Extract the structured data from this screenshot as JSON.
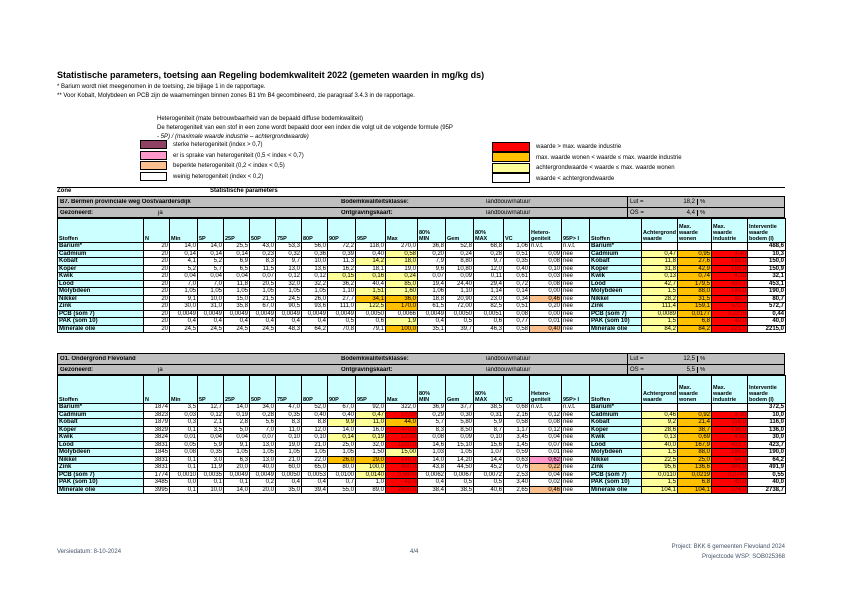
{
  "title": "Statistische parameters, toetsing aan Regeling bodemkwaliteit 2022 (gemeten waarden in mg/kg ds)",
  "footnote1": "* Barium wordt niet meegenomen in de toetsing, zie bijlage 1 in de rapportage.",
  "footnote2": "** Voor Kobalt, Molybdeen en PCB zijn de waarnemingen binnen zones B1 t/m B4 gecombineerd, zie paragraaf 3.4.3 in de rapportage.",
  "hetero_note": {
    "line1": "Heterogeniteit (mate betrouwbaarheid van de bepaald diffuse bodemkwaliteit)",
    "line2": "De heterogeniteit van een stof in een zone wordt bepaald door een index die volgt uit de volgende formule (95P",
    "line3": "- 5P) / (maximale waarde industrie – achtergrondwaarde)",
    "items": [
      {
        "color": "#8E4163",
        "label": "sterke heterogeniteit (index > 0,7)"
      },
      {
        "color": "#FF99CC",
        "label": "er is sprake van heterogeniteit (0,5 < index < 0,7)"
      },
      {
        "color": "#FAC090",
        "label": "beperkte heterogeniteit (0,2 < index < 0,5)"
      },
      {
        "color": "#FFFFFF",
        "label": "weinig heterogeniteit (index < 0,2)"
      }
    ]
  },
  "value_legend": {
    "items": [
      {
        "color": "#FF0000",
        "label": "waarde > max. waarde industrie"
      },
      {
        "color": "#FFC000",
        "label": "max. waarde wonen < waarde ≤ max. waarde industrie"
      },
      {
        "color": "#FFFF99",
        "label": "achtergrondwaarde < waarde ≤ max. waarde wonen"
      },
      {
        "color": "#FFFFFF",
        "label": "waarde < achtergrondwaarde"
      }
    ]
  },
  "zone_label": "Zone",
  "stat_label": "Statistische parameters",
  "columns": [
    "Stoffen",
    "N",
    "Min",
    "5P",
    "25P",
    "50P",
    "75P",
    "80P",
    "90P",
    "95P",
    "Max",
    "80%\nMIN",
    "Gem",
    "80%\nMAX",
    "VC",
    "Hetero-\ngeniteit",
    "95P> I",
    "Stoffen",
    "Achtergrond\nwaarde",
    "Max.\nwaarde\nwonen",
    "Max.\nwaarde\nindustrie",
    "Interventie\nwaarde\nbodem (I)"
  ],
  "cell_colors": {
    "ly": "#FFFF99",
    "am": "#FFC000",
    "rd": "#FF0000",
    "pe": "#FAC090",
    "pk": "#FF99CC"
  },
  "tables": [
    {
      "header": {
        "zone_title": "B7. Bermen provinciale weg Oostvaardersdijk",
        "gezoneerd_label": "Gezoneerd:",
        "gezoneerd_value": "ja",
        "klasse_label": "Bodemkwaliteitsklasse:",
        "klasse_value": "landbouw/natuur",
        "ontgraving_label": "Ontgravingskaart:",
        "ontgraving_value": "landbouw/natuur",
        "lut_label": "Lut =",
        "lut_value": "18,2",
        "lut_unit": "%",
        "os_label": "OS =",
        "os_value": "4,4",
        "os_unit": "%"
      },
      "rows": [
        [
          "Barium*",
          "20",
          "14,0",
          "14,0",
          "25,5",
          "43,0",
          "53,3",
          "56,0",
          "72,2",
          "118,0",
          "270,0",
          "36,8",
          "52,8",
          "68,8",
          "1,06",
          "n.v.t.",
          "n.v.t.",
          "Barium*",
          "",
          "",
          "",
          "488,6"
        ],
        [
          "Cadmium",
          "20",
          "0,14",
          "0,14",
          "0,14",
          "0,23",
          "0,32",
          "0,36",
          "0,39",
          "0,40",
          [
            "0,58",
            "ly"
          ],
          "0,20",
          "0,24",
          "0,28",
          "0,51",
          "0,09",
          "nee",
          "Cadmium",
          [
            "0,47",
            "ly"
          ],
          [
            "0,95",
            "am"
          ],
          [
            "3,40",
            "rd"
          ],
          "10,3"
        ],
        [
          "Kobalt",
          "20",
          "4,1",
          "5,2",
          "6,9",
          "8,3",
          "9,7",
          "10,0",
          "11,3",
          [
            "14,2",
            "ly"
          ],
          [
            "18,0",
            "ly"
          ],
          "7,9",
          "8,80",
          "9,7",
          "0,35",
          "0,08",
          "nee",
          "Kobalt",
          [
            "11,8",
            "ly"
          ],
          [
            "27,6",
            "am"
          ],
          [
            "150,0",
            "rd"
          ],
          "150,0"
        ],
        [
          "Koper",
          "20",
          "5,2",
          "5,7",
          "6,5",
          "11,5",
          "13,0",
          "13,6",
          "16,2",
          "18,1",
          "19,0",
          "9,6",
          "10,80",
          "12,0",
          "0,40",
          "0,10",
          "nee",
          "Koper",
          [
            "31,8",
            "ly"
          ],
          [
            "42,9",
            "am"
          ],
          [
            "150,9",
            "rd"
          ],
          "150,9"
        ],
        [
          "Kwik",
          "20",
          "0,04",
          "0,04",
          "0,04",
          "0,07",
          "0,12",
          "0,12",
          [
            "0,15",
            "ly"
          ],
          [
            "0,16",
            "ly"
          ],
          [
            "0,24",
            "ly"
          ],
          "0,07",
          "0,09",
          "0,11",
          "0,61",
          "0,03",
          "nee",
          "Kwik",
          [
            "0,13",
            "ly"
          ],
          [
            "0,74",
            "am"
          ],
          [
            "4,28",
            "rd"
          ],
          "32,1"
        ],
        [
          "Lood",
          "20",
          "7,0",
          "7,0",
          "11,8",
          "20,5",
          "32,0",
          "32,2",
          "36,2",
          "40,4",
          [
            "85,0",
            "ly"
          ],
          "19,4",
          "24,40",
          "29,4",
          "0,72",
          "0,08",
          "nee",
          "Lood",
          [
            "42,7",
            "ly"
          ],
          [
            "179,5",
            "am"
          ],
          [
            "453,1",
            "rd"
          ],
          "453,1"
        ],
        [
          "Molybdeen",
          "20",
          "1,05",
          "1,05",
          "1,05",
          "1,05",
          "1,05",
          "1,05",
          "1,10",
          [
            "1,51",
            "ly"
          ],
          [
            "1,60",
            "ly"
          ],
          "1,06",
          "1,10",
          "1,14",
          "0,14",
          "0,00",
          "nee",
          "Molybdeen",
          [
            "1,5",
            "ly"
          ],
          [
            "88,0",
            "am"
          ],
          [
            "190,0",
            "rd"
          ],
          "190,0"
        ],
        [
          "Nikkel",
          "20",
          "9,1",
          "10,0",
          "15,0",
          "21,5",
          "24,5",
          "26,0",
          "27,7",
          [
            "34,1",
            "am"
          ],
          [
            "36,0",
            "am"
          ],
          "18,8",
          "20,90",
          "23,0",
          "0,34",
          [
            "0,46",
            "pe"
          ],
          "nee",
          "Nikkel",
          [
            "28,2",
            "ly"
          ],
          [
            "31,5",
            "am"
          ],
          [
            "80,7",
            "rd"
          ],
          "80,7"
        ],
        [
          "Zink",
          "20",
          "30,0",
          "31,0",
          "35,8",
          "67,0",
          "90,5",
          "93,6",
          "111,0",
          [
            "122,5",
            "ly"
          ],
          [
            "170,0",
            "am"
          ],
          "61,5",
          "72,00",
          "82,5",
          "0,51",
          "0,20",
          "nee",
          "Zink",
          [
            "111,4",
            "ly"
          ],
          [
            "159,1",
            "am"
          ],
          [
            "572,7",
            "rd"
          ],
          "572,7"
        ],
        [
          "PCB (som 7)",
          "20",
          "0,0049",
          "0,0049",
          "0,0049",
          "0,0049",
          "0,0049",
          "0,0049",
          "0,0049",
          "0,0050",
          "0,0066",
          "0,0049",
          "0,0050",
          "0,0051",
          "0,08",
          "0,00",
          "nee",
          "PCB (som 7)",
          [
            "0,0089",
            "ly"
          ],
          [
            "0,0177",
            "am"
          ],
          [
            "0,2215",
            "rd"
          ],
          "0,44"
        ],
        [
          "PAK (som 10)",
          "20",
          "0,4",
          "0,4",
          "0,4",
          "0,4",
          "0,4",
          "0,4",
          "0,5",
          "0,6",
          [
            "1,9",
            "ly"
          ],
          "0,4",
          "0,5",
          "0,6",
          "0,77",
          "0,01",
          "nee",
          "PAK (som 10)",
          [
            "1,5",
            "ly"
          ],
          [
            "6,8",
            "am"
          ],
          [
            "40,0",
            "rd"
          ],
          "40,0"
        ],
        [
          "Minerale olie",
          "20",
          "24,5",
          "24,5",
          "24,5",
          "24,5",
          "48,3",
          "64,2",
          "70,8",
          "79,1",
          [
            "100,0",
            "am"
          ],
          "35,1",
          "39,7",
          "46,3",
          "0,58",
          [
            "0,40",
            "pe"
          ],
          "nee",
          "Minerale olie",
          [
            "84,2",
            "ly"
          ],
          [
            "84,2",
            "am"
          ],
          [
            "221,5",
            "rd"
          ],
          "2215,0"
        ]
      ]
    },
    {
      "header": {
        "zone_title": "O1. Ondergrond Flevoland",
        "gezoneerd_label": "Gezoneerd:",
        "gezoneerd_value": "ja",
        "klasse_label": "Bodemkwaliteitsklasse:",
        "klasse_value": "landbouw/natuur",
        "ontgraving_label": "Ontgravingskaart:",
        "ontgraving_value": "landbouw/natuur",
        "lut_label": "Lut =",
        "lut_value": "12,5",
        "lut_unit": "%",
        "os_label": "OS =",
        "os_value": "5,5",
        "os_unit": "%"
      },
      "rows": [
        [
          "Barium*",
          "1874",
          "3,5",
          "12,7",
          "14,0",
          "34,0",
          "47,0",
          "52,0",
          "67,0",
          "92,0",
          "322,0",
          "36,9",
          "37,7",
          "38,5",
          "0,68",
          "n.v.t.",
          "n.v.t.",
          "Barium*",
          "",
          "",
          "",
          "372,5"
        ],
        [
          "Cadmium",
          "3823",
          "0,03",
          "0,12",
          "0,19",
          "0,28",
          "0,35",
          "0,40",
          "0,40",
          [
            "0,47",
            "ly"
          ],
          [
            "17,00",
            "rd"
          ],
          "0,29",
          "0,30",
          "0,31",
          "2,16",
          "0,12",
          "nee",
          "Cadmium",
          [
            "0,46",
            "ly"
          ],
          [
            "0,92",
            "am"
          ],
          [
            "3,30",
            "rd"
          ],
          "10,0"
        ],
        [
          "Kobalt",
          "1879",
          "0,3",
          "2,1",
          "2,8",
          "5,6",
          "8,3",
          "8,8",
          [
            "9,9",
            "ly"
          ],
          [
            "11,0",
            "ly"
          ],
          [
            "44,0",
            "am"
          ],
          "5,7",
          "5,80",
          "5,9",
          "0,58",
          "0,08",
          "nee",
          "Kobalt",
          [
            "9,2",
            "ly"
          ],
          [
            "21,4",
            "am"
          ],
          [
            "116,0",
            "rd"
          ],
          "116,0"
        ],
        [
          "Koper",
          "3829",
          "0,1",
          "3,5",
          "5,0",
          "7,0",
          "11,0",
          "12,0",
          "14,0",
          "16,0",
          [
            "470,0",
            "rd"
          ],
          "8,3",
          "8,50",
          "8,7",
          "1,17",
          "0,12",
          "nee",
          "Koper",
          [
            "28,6",
            "ly"
          ],
          [
            "38,7",
            "am"
          ],
          [
            "136,0",
            "rd"
          ],
          "136,0"
        ],
        [
          "Kwik",
          "3824",
          "0,01",
          "0,04",
          "0,04",
          "0,07",
          "0,10",
          "0,10",
          [
            "0,14",
            "ly"
          ],
          [
            "0,19",
            "ly"
          ],
          [
            "12,00",
            "rd"
          ],
          "0,08",
          "0,09",
          "0,10",
          "3,45",
          "0,04",
          "nee",
          "Kwik",
          [
            "0,13",
            "ly"
          ],
          [
            "0,69",
            "am"
          ],
          [
            "4,00",
            "rd"
          ],
          "30,0"
        ],
        [
          "Lood",
          "3831",
          "0,05",
          "5,9",
          "9,1",
          "13,0",
          "19,0",
          "21,0",
          "25,0",
          "32,0",
          [
            "1220,0",
            "rd"
          ],
          "14,6",
          "15,10",
          "15,6",
          "1,45",
          "0,07",
          "nee",
          "Lood",
          [
            "40,0",
            "ly"
          ],
          [
            "167,9",
            "am"
          ],
          [
            "423,7",
            "rd"
          ],
          "423,7"
        ],
        [
          "Molybdeen",
          "1845",
          "0,08",
          "0,35",
          "1,05",
          "1,05",
          "1,05",
          "1,05",
          "1,05",
          "1,50",
          [
            "15,00",
            "ly"
          ],
          "1,03",
          "1,05",
          "1,07",
          "0,59",
          "0,01",
          "nee",
          "Molybdeen",
          [
            "1,5",
            "ly"
          ],
          [
            "88,0",
            "am"
          ],
          [
            "190,0",
            "rd"
          ],
          "190,0"
        ],
        [
          "Nikkel",
          "3831",
          "0,1",
          "3,0",
          "6,3",
          "13,0",
          "21,0",
          "22,0",
          [
            "26,0",
            "am"
          ],
          [
            "29,0",
            "am"
          ],
          [
            "140,0",
            "rd"
          ],
          "14,0",
          "14,20",
          "14,4",
          "0,63",
          [
            "0,62",
            "pk"
          ],
          "nee",
          "Nikkel",
          [
            "22,5",
            "ly"
          ],
          [
            "25,0",
            "am"
          ],
          [
            "64,2",
            "rd"
          ],
          "64,2"
        ],
        [
          "Zink",
          "3831",
          "0,1",
          "11,9",
          "20,0",
          "40,0",
          "60,0",
          "65,0",
          "80,0",
          [
            "100,0",
            "ly"
          ],
          [
            "450,0",
            "rd"
          ],
          "43,8",
          "44,50",
          "45,2",
          "0,76",
          [
            "0,22",
            "pe"
          ],
          "nee",
          "Zink",
          [
            "95,6",
            "ly"
          ],
          [
            "136,6",
            "am"
          ],
          [
            "491,9",
            "rd"
          ],
          "491,9"
        ],
        [
          "PCB (som 7)",
          "1774",
          "0,0010",
          "0,0035",
          "0,0049",
          "0,0049",
          "0,0050",
          "0,0053",
          "0,0100",
          [
            "0,0140",
            "ly"
          ],
          [
            "0,6600",
            "rd"
          ],
          "0,0062",
          "0,0067",
          "0,0072",
          "2,53",
          "0,04",
          "nee",
          "PCB (som 7)",
          [
            "0,0110",
            "ly"
          ],
          [
            "0,0219",
            "am"
          ],
          [
            "0,2740",
            "rd"
          ],
          "0,55"
        ],
        [
          "PAK (som 10)",
          "3485",
          "0,0",
          "0,1",
          "0,1",
          "0,2",
          "0,4",
          "0,4",
          "0,7",
          "1,0",
          [
            "42,0",
            "rd"
          ],
          "0,4",
          "0,5",
          "0,5",
          "3,40",
          "0,02",
          "nee",
          "PAK (som 10)",
          [
            "1,5",
            "ly"
          ],
          [
            "6,8",
            "am"
          ],
          [
            "40,0",
            "rd"
          ],
          "40,0"
        ],
        [
          "Minerale olie",
          "3995",
          "0,1",
          "10,0",
          "14,0",
          "20,0",
          "35,0",
          "39,4",
          "55,0",
          "89,0",
          [
            "2400,0",
            "rd"
          ],
          "38,4",
          "38,5",
          "40,6",
          "2,65",
          [
            "0,46",
            "pe"
          ],
          "nee",
          "Minerale olie",
          [
            "104,1",
            "ly"
          ],
          [
            "104,1",
            "am"
          ],
          [
            "274,0",
            "rd"
          ],
          "2738,7"
        ]
      ]
    }
  ],
  "footer": {
    "versie": "Versiedatum: 8-10-2024",
    "page": "4/4",
    "project_line1": "Project: BKK 6 gemeenten Flevoland 2024",
    "project_line2": "Projectcode WSP: SOB025368"
  }
}
